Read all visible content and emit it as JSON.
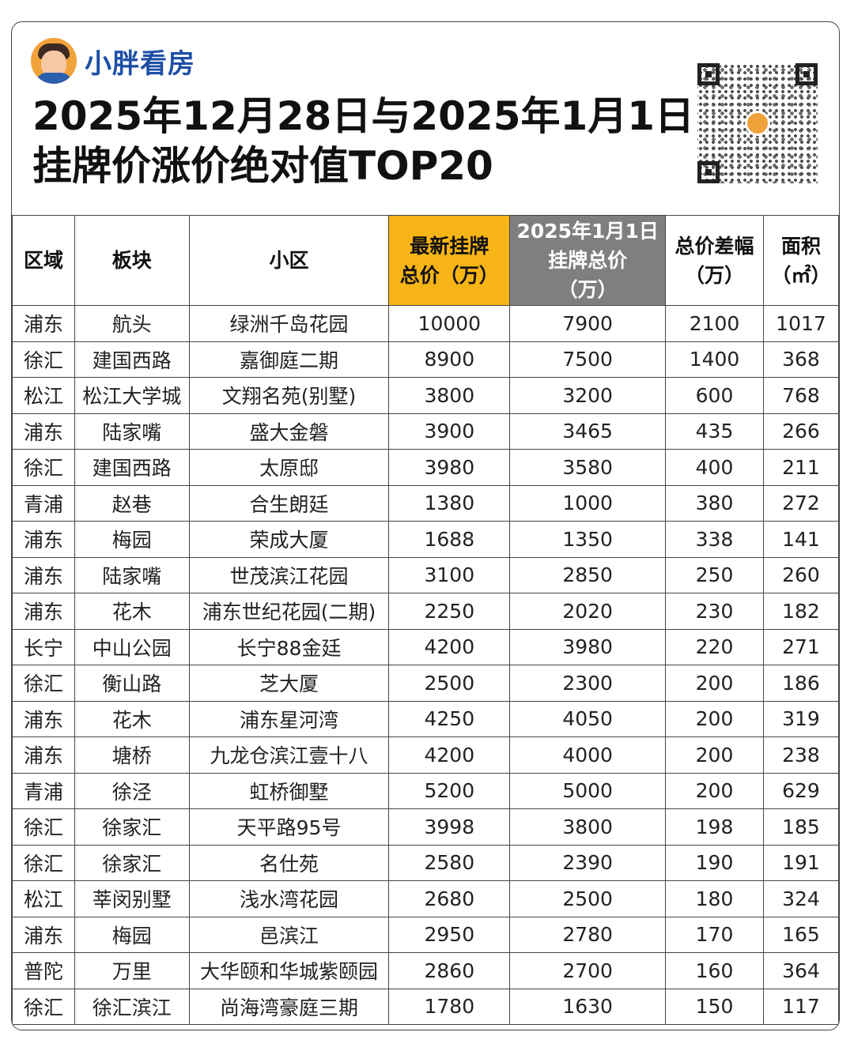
{
  "brand": {
    "name": "小胖看房",
    "avatar_icon": "cartoon-avatar-icon"
  },
  "title": {
    "line1": "2025年12月28日与2025年1月1日",
    "line2": "挂牌价涨价绝对值TOP20"
  },
  "qr_icon": "qr-code-icon",
  "colors": {
    "new_header": "#f7b416",
    "old_header": "#7f7f7f",
    "brand": "#1e4fa6"
  },
  "headers": [
    {
      "text": "区域"
    },
    {
      "text": "板块"
    },
    {
      "text": "小区"
    },
    {
      "text": "最新挂牌\n总价（万）"
    },
    {
      "text": "2025年1月1日\n挂牌总价\n（万）"
    },
    {
      "text": "总价差幅\n（万）"
    },
    {
      "text": "面积\n（㎡）"
    }
  ],
  "rows": [
    [
      "浦东",
      "航头",
      "绿洲千岛花园",
      "10000",
      "7900",
      "2100",
      "1017"
    ],
    [
      "徐汇",
      "建国西路",
      "嘉御庭二期",
      "8900",
      "7500",
      "1400",
      "368"
    ],
    [
      "松江",
      "松江大学城",
      "文翔名苑(别墅)",
      "3800",
      "3200",
      "600",
      "768"
    ],
    [
      "浦东",
      "陆家嘴",
      "盛大金磐",
      "3900",
      "3465",
      "435",
      "266"
    ],
    [
      "徐汇",
      "建国西路",
      "太原邸",
      "3980",
      "3580",
      "400",
      "211"
    ],
    [
      "青浦",
      "赵巷",
      "合生朗廷",
      "1380",
      "1000",
      "380",
      "272"
    ],
    [
      "浦东",
      "梅园",
      "荣成大厦",
      "1688",
      "1350",
      "338",
      "141"
    ],
    [
      "浦东",
      "陆家嘴",
      "世茂滨江花园",
      "3100",
      "2850",
      "250",
      "260"
    ],
    [
      "浦东",
      "花木",
      "浦东世纪花园(二期)",
      "2250",
      "2020",
      "230",
      "182"
    ],
    [
      "长宁",
      "中山公园",
      "长宁88金廷",
      "4200",
      "3980",
      "220",
      "271"
    ],
    [
      "徐汇",
      "衡山路",
      "芝大厦",
      "2500",
      "2300",
      "200",
      "186"
    ],
    [
      "浦东",
      "花木",
      "浦东星河湾",
      "4250",
      "4050",
      "200",
      "319"
    ],
    [
      "浦东",
      "塘桥",
      "九龙仓滨江壹十八",
      "4200",
      "4000",
      "200",
      "238"
    ],
    [
      "青浦",
      "徐泾",
      "虹桥御墅",
      "5200",
      "5000",
      "200",
      "629"
    ],
    [
      "徐汇",
      "徐家汇",
      "天平路95号",
      "3998",
      "3800",
      "198",
      "185"
    ],
    [
      "徐汇",
      "徐家汇",
      "名仕苑",
      "2580",
      "2390",
      "190",
      "191"
    ],
    [
      "松江",
      "莘闵别墅",
      "浅水湾花园",
      "2680",
      "2500",
      "180",
      "324"
    ],
    [
      "浦东",
      "梅园",
      "邑滨江",
      "2950",
      "2780",
      "170",
      "165"
    ],
    [
      "普陀",
      "万里",
      "大华颐和华城紫颐园",
      "2860",
      "2700",
      "160",
      "364"
    ],
    [
      "徐汇",
      "徐汇滨江",
      "尚海湾豪庭三期",
      "1780",
      "1630",
      "150",
      "117"
    ]
  ]
}
